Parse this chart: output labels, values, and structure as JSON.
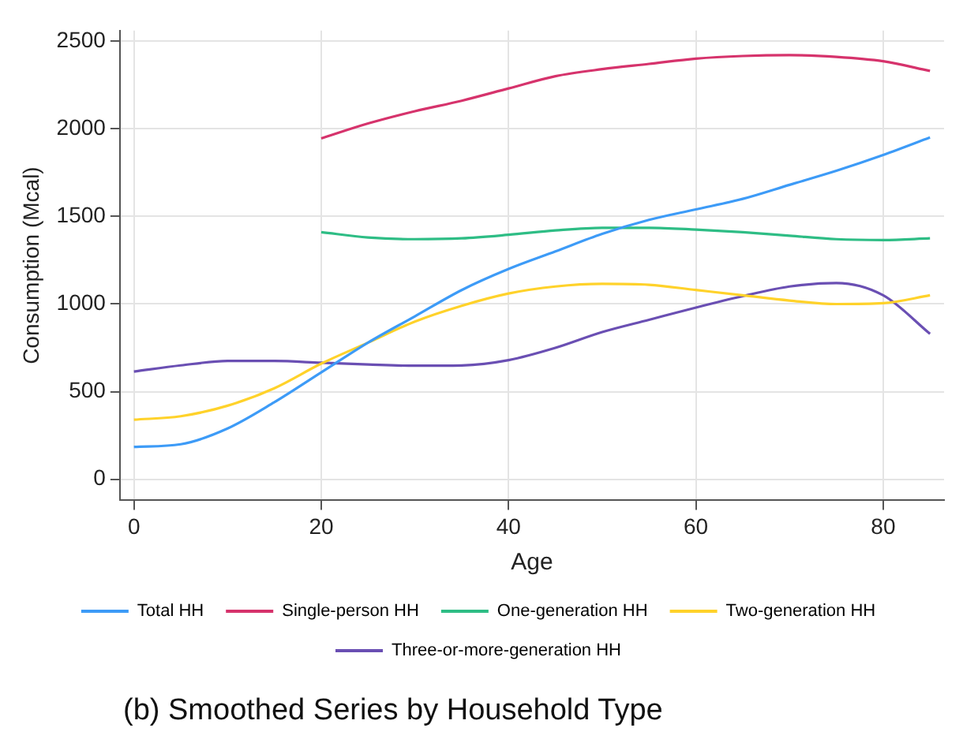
{
  "chart_data": {
    "type": "line",
    "title": "(b) Smoothed Series by Household Type",
    "xlabel": "Age",
    "ylabel": "Consumption (Mcal)",
    "xlim": [
      -1.5,
      86.5
    ],
    "xticks": [
      0,
      20,
      40,
      60,
      80
    ],
    "ylim": [
      -120,
      2560
    ],
    "yticks": [
      0,
      500,
      1000,
      1500,
      2000,
      2500
    ],
    "grid": true,
    "legend": "bottom",
    "marker": "none",
    "line_style": "solid",
    "x": [
      0,
      5,
      10,
      15,
      20,
      25,
      30,
      35,
      40,
      45,
      50,
      55,
      60,
      65,
      70,
      75,
      80,
      85
    ],
    "series": [
      {
        "name": "Total HH",
        "color": "#3d9bf7",
        "values": [
          185,
          200,
          290,
          440,
          610,
          780,
          930,
          1080,
          1200,
          1300,
          1400,
          1480,
          1540,
          1600,
          1680,
          1760,
          1850,
          1950
        ]
      },
      {
        "name": "Single-person HH",
        "color": "#d6336c",
        "x": [
          20,
          25,
          30,
          35,
          40,
          45,
          50,
          55,
          60,
          65,
          70,
          75,
          80,
          85
        ],
        "values": [
          1945,
          2030,
          2100,
          2160,
          2230,
          2300,
          2340,
          2370,
          2400,
          2415,
          2420,
          2410,
          2385,
          2330
        ]
      },
      {
        "name": "One-generation HH",
        "color": "#2ebd85",
        "x": [
          20,
          25,
          30,
          35,
          40,
          45,
          50,
          55,
          60,
          65,
          70,
          75,
          80,
          85
        ],
        "values": [
          1410,
          1380,
          1370,
          1375,
          1395,
          1420,
          1435,
          1435,
          1425,
          1410,
          1390,
          1370,
          1365,
          1375
        ]
      },
      {
        "name": "Two-generation HH",
        "color": "#ffd22a",
        "values": [
          340,
          360,
          420,
          520,
          660,
          780,
          900,
          990,
          1060,
          1100,
          1115,
          1110,
          1080,
          1050,
          1020,
          1000,
          1005,
          1050
        ]
      },
      {
        "name": "Three-or-more-generation HH",
        "color": "#6a4fb3",
        "values": [
          615,
          650,
          675,
          675,
          665,
          655,
          648,
          650,
          680,
          750,
          840,
          910,
          980,
          1045,
          1100,
          1120,
          1050,
          830
        ]
      }
    ]
  }
}
